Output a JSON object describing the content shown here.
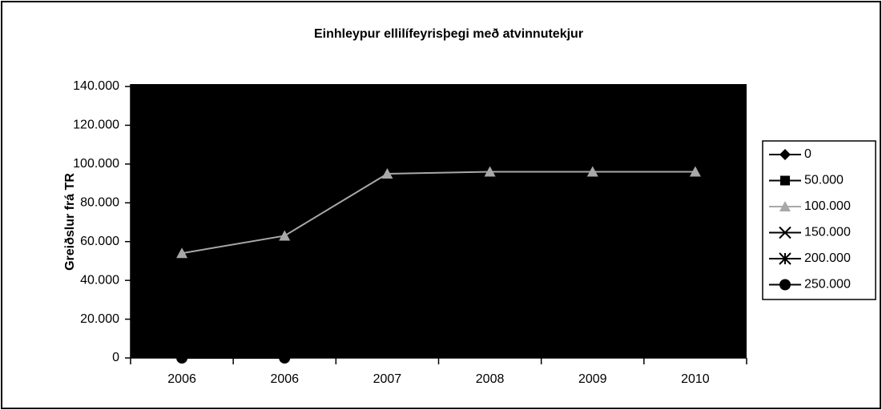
{
  "chart_data": {
    "type": "line",
    "title": "Einhleypur ellilífeyrisþegi með atvinnutekjur",
    "y_label": "Greiðslur frá TR",
    "categories": [
      "2006",
      "2006",
      "2007",
      "2008",
      "2009",
      "2010"
    ],
    "series": [
      {
        "name": "0",
        "color": "#000000",
        "marker": "diamond",
        "values": [
          null,
          null,
          null,
          null,
          null,
          null
        ]
      },
      {
        "name": "50.000",
        "color": "#000000",
        "marker": "square",
        "values": [
          null,
          null,
          null,
          null,
          null,
          null
        ]
      },
      {
        "name": "100.000",
        "color": "#a8a8a8",
        "marker": "triangle",
        "values": [
          54000,
          63000,
          95000,
          96000,
          96000,
          96000
        ]
      },
      {
        "name": "150.000",
        "color": "#000000",
        "marker": "x",
        "values": [
          null,
          null,
          null,
          null,
          null,
          null
        ]
      },
      {
        "name": "200.000",
        "color": "#000000",
        "marker": "star",
        "values": [
          null,
          null,
          null,
          null,
          null,
          null
        ]
      },
      {
        "name": "250.000",
        "color": "#000000",
        "marker": "circle",
        "values": [
          0,
          0,
          null,
          null,
          null,
          null
        ]
      }
    ],
    "ylim": [
      0,
      140000
    ],
    "yticks": [
      0,
      {
        "value": 20000,
        "label": "20.000"
      },
      {
        "value": 40000,
        "label": "40.000"
      },
      {
        "value": 60000,
        "label": "60.000"
      },
      {
        "value": 80000,
        "label": "80.000"
      },
      {
        "value": 100000,
        "label": "100.000"
      },
      {
        "value": 120000,
        "label": "120.000"
      },
      {
        "value": 140000,
        "label": "140.000"
      }
    ],
    "plot_background": "#000000",
    "legend": "right"
  }
}
